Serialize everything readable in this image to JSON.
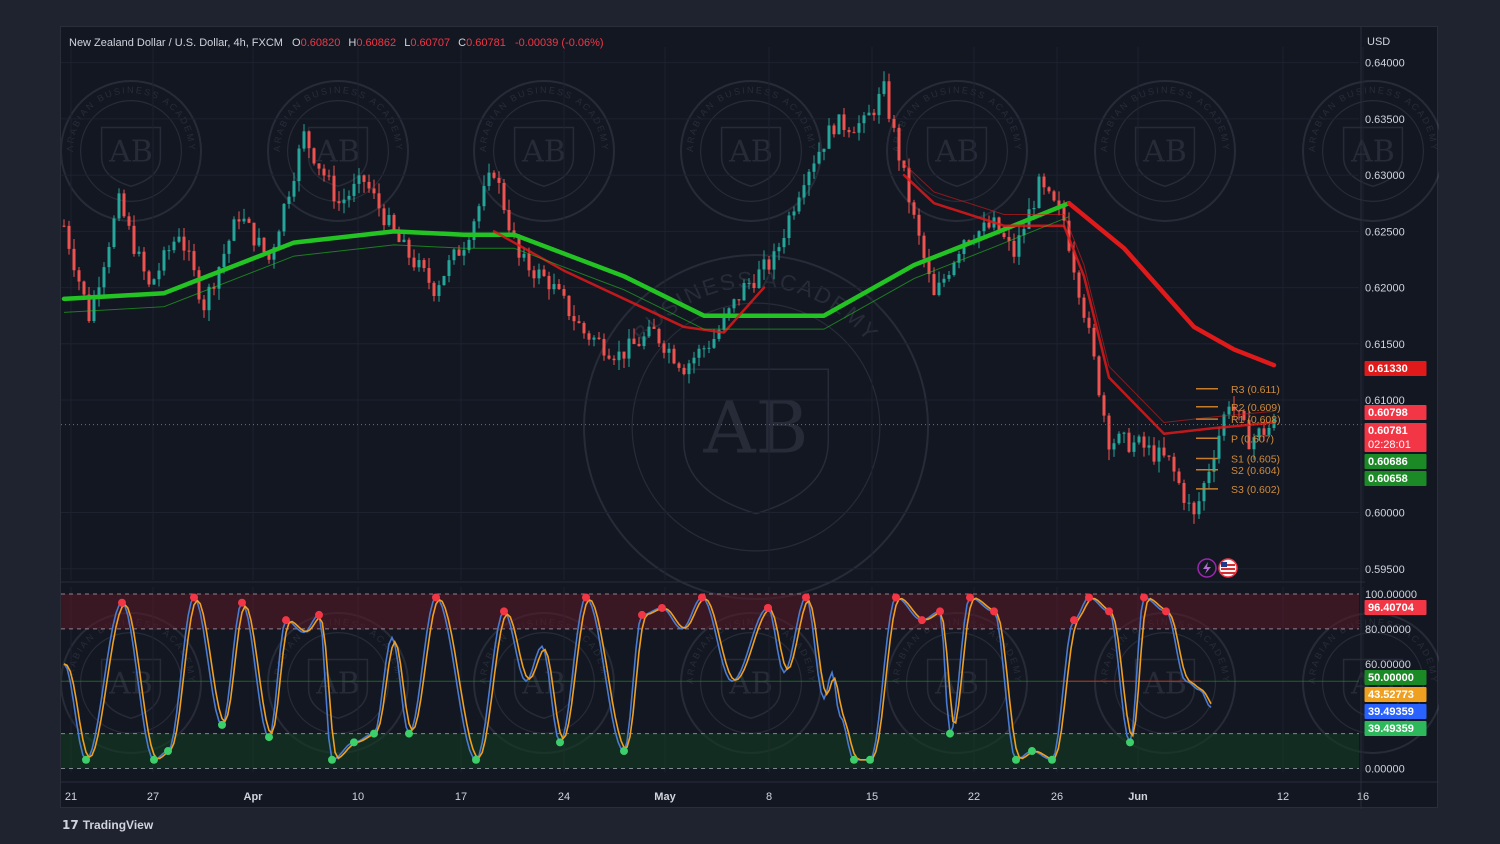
{
  "header": {
    "symbol": "New Zealand Dollar / U.S. Dollar, 4h, FXCM",
    "open_label": "O",
    "open_value": "0.60820",
    "high_label": "H",
    "high_value": "0.60862",
    "low_label": "L",
    "low_value": "0.60707",
    "close_label": "C",
    "close_value": "0.60781",
    "change": "-0.00039 (-0.06%)"
  },
  "currency": "USD",
  "watermark": {
    "monogram": "AB",
    "ring_text": "ARABIAN BUSINESS ACADEMY",
    "center_ring_text": "BUSINESS ACADEMY"
  },
  "footer": {
    "logo": "17",
    "brand": "TradingView"
  },
  "colors": {
    "up": "#26a69a",
    "down": "#ef5350",
    "ma_green": "#22c322",
    "ma_red": "#e01a1a",
    "stoch_k": "#4a7bd0",
    "stoch_d": "#f0a020",
    "pivot": "#c67c2a"
  },
  "icons": [
    "lightning-icon",
    "us-flag-icon"
  ],
  "chart_data": [
    {
      "type": "candlestick",
      "title": "New Zealand Dollar / U.S. Dollar, 4h, FXCM",
      "yaxis_label": "USD",
      "ylim": [
        0.594,
        0.6405
      ],
      "y_ticks": [
        "0.64000",
        "0.63500",
        "0.63000",
        "0.62500",
        "0.62000",
        "0.61500",
        "0.61000",
        "0.60000",
        "0.59500"
      ],
      "x_ticks": [
        "21",
        "27",
        "Apr",
        "10",
        "17",
        "24",
        "May",
        "8",
        "15",
        "22",
        "26",
        "Jun",
        "12",
        "16"
      ],
      "close_path": [
        {
          "t": 0,
          "v": 0.6255
        },
        {
          "t": 25,
          "v": 0.6175
        },
        {
          "t": 55,
          "v": 0.6275
        },
        {
          "t": 85,
          "v": 0.62
        },
        {
          "t": 115,
          "v": 0.625
        },
        {
          "t": 140,
          "v": 0.6185
        },
        {
          "t": 175,
          "v": 0.6265
        },
        {
          "t": 205,
          "v": 0.6225
        },
        {
          "t": 240,
          "v": 0.6335
        },
        {
          "t": 275,
          "v": 0.6275
        },
        {
          "t": 300,
          "v": 0.6295
        },
        {
          "t": 335,
          "v": 0.624
        },
        {
          "t": 370,
          "v": 0.62
        },
        {
          "t": 400,
          "v": 0.624
        },
        {
          "t": 430,
          "v": 0.6305
        },
        {
          "t": 455,
          "v": 0.6225
        },
        {
          "t": 485,
          "v": 0.6205
        },
        {
          "t": 520,
          "v": 0.616
        },
        {
          "t": 555,
          "v": 0.614
        },
        {
          "t": 590,
          "v": 0.616
        },
        {
          "t": 620,
          "v": 0.613
        },
        {
          "t": 650,
          "v": 0.6155
        },
        {
          "t": 680,
          "v": 0.62
        },
        {
          "t": 710,
          "v": 0.6225
        },
        {
          "t": 740,
          "v": 0.63
        },
        {
          "t": 770,
          "v": 0.6345
        },
        {
          "t": 800,
          "v": 0.6345
        },
        {
          "t": 820,
          "v": 0.6375
        },
        {
          "t": 850,
          "v": 0.626
        },
        {
          "t": 870,
          "v": 0.619
        },
        {
          "t": 900,
          "v": 0.6245
        },
        {
          "t": 930,
          "v": 0.6255
        },
        {
          "t": 950,
          "v": 0.623
        },
        {
          "t": 975,
          "v": 0.629
        },
        {
          "t": 1000,
          "v": 0.626
        },
        {
          "t": 1020,
          "v": 0.618
        },
        {
          "t": 1045,
          "v": 0.6065
        },
        {
          "t": 1075,
          "v": 0.606
        },
        {
          "t": 1105,
          "v": 0.6045
        },
        {
          "t": 1130,
          "v": 0.5995
        },
        {
          "t": 1150,
          "v": 0.6055
        },
        {
          "t": 1165,
          "v": 0.61
        },
        {
          "t": 1185,
          "v": 0.6065
        },
        {
          "t": 1210,
          "v": 0.6078
        }
      ],
      "series": [
        {
          "name": "",
          "color": "#22c322",
          "points": [
            [
              0,
              0.619
            ],
            [
              100,
              0.6195
            ],
            [
              230,
              0.624
            ],
            [
              330,
              0.625
            ],
            [
              400,
              0.6247
            ],
            [
              450,
              0.6247
            ],
            [
              560,
              0.621
            ],
            [
              640,
              0.6175
            ],
            [
              760,
              0.6175
            ],
            [
              850,
              0.622
            ],
            [
              930,
              0.6248
            ],
            [
              1005,
              0.6275
            ]
          ]
        },
        {
          "name": "",
          "color": "#e01a1a",
          "points": [
            [
              1005,
              0.6275
            ],
            [
              1060,
              0.6235
            ],
            [
              1130,
              0.6165
            ],
            [
              1170,
              0.6145
            ],
            [
              1210,
              0.6131
            ]
          ]
        },
        {
          "name": "",
          "color": "#e01a1a",
          "points": [
            [
              840,
              0.63
            ],
            [
              870,
              0.6275
            ],
            [
              940,
              0.6255
            ],
            [
              1000,
              0.6255
            ],
            [
              1020,
              0.621
            ],
            [
              1045,
              0.612
            ],
            [
              1100,
              0.607
            ],
            [
              1150,
              0.6075
            ],
            [
              1210,
              0.608
            ]
          ]
        },
        {
          "name": "",
          "color": "#e01a1a",
          "points": [
            [
              430,
              0.625
            ],
            [
              500,
              0.6215
            ],
            [
              560,
              0.619
            ],
            [
              620,
              0.6165
            ],
            [
              660,
              0.616
            ],
            [
              700,
              0.62
            ]
          ]
        }
      ],
      "pivots": [
        {
          "label": "R3 (0.611)",
          "value": 0.611
        },
        {
          "label": "R2 (0.609)",
          "value": 0.6094
        },
        {
          "label": "R1 (0.608)",
          "value": 0.6083
        },
        {
          "label": "P (0.607)",
          "value": 0.6066
        },
        {
          "label": "S1 (0.605)",
          "value": 0.6048
        },
        {
          "label": "S2 (0.604)",
          "value": 0.6038
        },
        {
          "label": "S3 (0.602)",
          "value": 0.6021
        }
      ],
      "price_tags": [
        {
          "text": "0.61330",
          "value": 0.6133,
          "color": "#e01a1a"
        },
        {
          "text": "0.60798",
          "value": 0.60798,
          "color": "#f23645"
        },
        {
          "text": "0.60781",
          "value": 0.60781,
          "color": "#f23645",
          "sub": "02:28:01"
        },
        {
          "text": "0.60686",
          "value": 0.60686,
          "color": "#1b8a26"
        },
        {
          "text": "0.60658",
          "value": 0.60658,
          "color": "#1b8a26"
        }
      ],
      "current_price": 0.60781
    },
    {
      "type": "line",
      "ylim": [
        -2,
        104
      ],
      "y_ticks": [
        "100.00000",
        "80.00000",
        "60.00000",
        "0.00000"
      ],
      "overbought": 80,
      "oversold": 20,
      "midline": 50,
      "price_tags": [
        {
          "text": "96.40704",
          "value": 96.40704,
          "color": "#f23645"
        },
        {
          "text": "50.00000",
          "value": 50,
          "color": "#1b8a26"
        },
        {
          "text": "43.52773",
          "value": 43.52773,
          "color": "#f0a020"
        },
        {
          "text": "39.49359",
          "value": 39.49359,
          "color": "#2962ff"
        },
        {
          "text": "39.49359",
          "value": 39.49359,
          "color": "#2eb85c"
        }
      ]
    }
  ]
}
